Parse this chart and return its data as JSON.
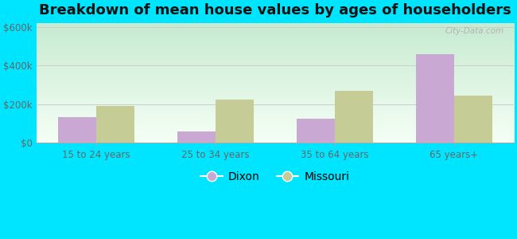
{
  "title": "Breakdown of mean house values by ages of householders",
  "categories": [
    "15 to 24 years",
    "25 to 34 years",
    "35 to 64 years",
    "65 years+"
  ],
  "dixon_values": [
    130000,
    55000,
    125000,
    460000
  ],
  "missouri_values": [
    190000,
    225000,
    270000,
    245000
  ],
  "ylim": [
    0,
    620000
  ],
  "yticks": [
    0,
    200000,
    400000,
    600000
  ],
  "ytick_labels": [
    "$0",
    "$200k",
    "$400k",
    "$600k"
  ],
  "dixon_color": "#c9a8d4",
  "missouri_color": "#c5cc96",
  "bar_width": 0.32,
  "outer_bg": "#00e5ff",
  "title_fontsize": 13,
  "tick_fontsize": 8.5,
  "legend_fontsize": 10,
  "watermark": "City-Data.com",
  "grid_color": "#cccccc",
  "spine_color": "#aaaaaa",
  "tick_color": "#666666"
}
